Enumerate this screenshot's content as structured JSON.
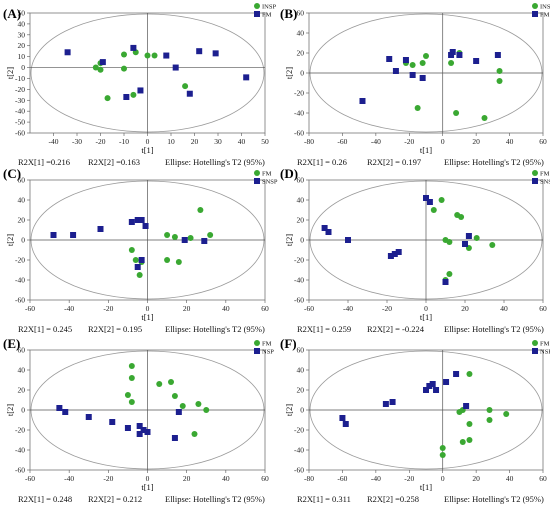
{
  "chart_data": [
    {
      "type": "scatter",
      "panel_label": "(A)",
      "xlabel": "t[1]",
      "ylabel": "t[2]",
      "xlim": [
        -50,
        50
      ],
      "ylim": [
        -60,
        50
      ],
      "xticks": [
        -40,
        -30,
        -20,
        -10,
        0,
        10,
        20,
        30,
        40,
        50
      ],
      "yticks": [
        -60,
        -50,
        -40,
        -30,
        -20,
        -10,
        0,
        10,
        20,
        30,
        40,
        50
      ],
      "stats": [
        "R2X[1] =0.216",
        "R2X[2] =0.163",
        "Ellipse: Hotelling's T2 (95%)"
      ],
      "series": [
        {
          "name": "INSP",
          "marker": "circle",
          "color": "#3aa832",
          "points": [
            [
              -22,
              0
            ],
            [
              -20,
              -2
            ],
            [
              -20,
              4
            ],
            [
              -17,
              -28
            ],
            [
              -10,
              12
            ],
            [
              -10,
              -1
            ],
            [
              -6,
              -25
            ],
            [
              -5,
              14
            ],
            [
              0,
              11
            ],
            [
              3,
              11
            ],
            [
              16,
              -17
            ]
          ]
        },
        {
          "name": "FM",
          "marker": "square",
          "color": "#1c1f8f",
          "points": [
            [
              -34,
              14
            ],
            [
              -19,
              5
            ],
            [
              -9,
              -27
            ],
            [
              -6,
              18
            ],
            [
              -3,
              -21
            ],
            [
              8,
              11
            ],
            [
              12,
              0
            ],
            [
              22,
              15
            ],
            [
              29,
              13
            ],
            [
              42,
              -9
            ],
            [
              18,
              -24
            ]
          ]
        }
      ]
    },
    {
      "type": "scatter",
      "panel_label": "(B)",
      "xlabel": "t[1]",
      "ylabel": "t[2]",
      "xlim": [
        -80,
        60
      ],
      "ylim": [
        -60,
        60
      ],
      "xticks": [
        -80,
        -60,
        -40,
        -20,
        0,
        20,
        40,
        60
      ],
      "yticks": [
        -60,
        -40,
        -20,
        0,
        20,
        40,
        60
      ],
      "stats": [
        "R2X[1] = 0.26",
        "R2X[2] = 0.197",
        "Ellipse: Hotelling's T2 (95%)"
      ],
      "series": [
        {
          "name": "INSP",
          "marker": "circle",
          "color": "#3aa832",
          "points": [
            [
              -22,
              10
            ],
            [
              -18,
              8
            ],
            [
              -12,
              10
            ],
            [
              -10,
              17
            ],
            [
              -15,
              -35
            ],
            [
              8,
              -40
            ],
            [
              25,
              -45
            ],
            [
              34,
              2
            ],
            [
              34,
              -8
            ],
            [
              10,
              20
            ],
            [
              5,
              10
            ]
          ]
        },
        {
          "name": "FM",
          "marker": "square",
          "color": "#1c1f8f",
          "points": [
            [
              -48,
              -28
            ],
            [
              -32,
              14
            ],
            [
              -28,
              2
            ],
            [
              -22,
              13
            ],
            [
              -18,
              -2
            ],
            [
              -12,
              -5
            ],
            [
              6,
              21
            ],
            [
              10,
              18
            ],
            [
              20,
              12
            ],
            [
              33,
              18
            ],
            [
              5,
              18
            ]
          ]
        }
      ]
    },
    {
      "type": "scatter",
      "panel_label": "(C)",
      "xlabel": "t[1]",
      "ylabel": "t[2]",
      "xlim": [
        -60,
        60
      ],
      "ylim": [
        -60,
        60
      ],
      "xticks": [
        -60,
        -40,
        -20,
        0,
        20,
        40,
        60
      ],
      "yticks": [
        -60,
        -40,
        -20,
        0,
        20,
        40,
        60
      ],
      "stats": [
        "R2X[1] = 0.245",
        "R2X[2] = 0.195",
        "Ellipse: Hotelling's T2 (95%)"
      ],
      "series": [
        {
          "name": "FM",
          "marker": "circle",
          "color": "#3aa832",
          "points": [
            [
              -8,
              -10
            ],
            [
              -6,
              -20
            ],
            [
              -4,
              -35
            ],
            [
              -3,
              -22
            ],
            [
              10,
              5
            ],
            [
              14,
              3
            ],
            [
              16,
              -22
            ],
            [
              10,
              -20
            ],
            [
              22,
              2
            ],
            [
              27,
              30
            ],
            [
              32,
              5
            ]
          ]
        },
        {
          "name": "SNSP",
          "marker": "square",
          "color": "#1c1f8f",
          "points": [
            [
              -48,
              5
            ],
            [
              -38,
              5
            ],
            [
              -24,
              11
            ],
            [
              -8,
              18
            ],
            [
              -5,
              20
            ],
            [
              -3,
              20
            ],
            [
              -1,
              14
            ],
            [
              -5,
              -27
            ],
            [
              19,
              0
            ],
            [
              29,
              -1
            ],
            [
              -3,
              -20
            ]
          ]
        }
      ]
    },
    {
      "type": "scatter",
      "panel_label": "(D)",
      "xlabel": "t[1]",
      "ylabel": "t[2]",
      "xlim": [
        -60,
        60
      ],
      "ylim": [
        -60,
        60
      ],
      "xticks": [
        -60,
        -40,
        -20,
        0,
        20,
        40,
        60
      ],
      "yticks": [
        -60,
        -40,
        -20,
        0,
        20,
        40,
        60
      ],
      "stats": [
        "R2X[1] = 0.259",
        "R2X[2] = -0.224",
        "Ellipse: Hotelling's T2 (95%)"
      ],
      "series": [
        {
          "name": "FM",
          "marker": "circle",
          "color": "#3aa832",
          "points": [
            [
              4,
              30
            ],
            [
              8,
              40
            ],
            [
              10,
              0
            ],
            [
              12,
              -2
            ],
            [
              16,
              25
            ],
            [
              18,
              23
            ],
            [
              22,
              -8
            ],
            [
              26,
              2
            ],
            [
              34,
              -5
            ],
            [
              12,
              -34
            ],
            [
              10,
              -40
            ]
          ]
        },
        {
          "name": "SNSP",
          "marker": "square",
          "color": "#1c1f8f",
          "points": [
            [
              -52,
              12
            ],
            [
              -50,
              8
            ],
            [
              -40,
              0
            ],
            [
              -16,
              -14
            ],
            [
              -14,
              -12
            ],
            [
              0,
              42
            ],
            [
              10,
              -42
            ],
            [
              22,
              4
            ],
            [
              2,
              38
            ],
            [
              -18,
              -16
            ],
            [
              20,
              -4
            ]
          ]
        }
      ]
    },
    {
      "type": "scatter",
      "panel_label": "(E)",
      "xlabel": "t[1]",
      "ylabel": "t[2]",
      "xlim": [
        -60,
        60
      ],
      "ylim": [
        -60,
        60
      ],
      "xticks": [
        -60,
        -40,
        -20,
        0,
        20,
        40,
        60
      ],
      "yticks": [
        -60,
        -40,
        -20,
        0,
        20,
        40,
        60
      ],
      "stats": [
        "R2X[1] = 0.248",
        "R2X[2] = 0.212",
        "Ellipse: Hotelling's T2 (95%)"
      ],
      "series": [
        {
          "name": "FM",
          "marker": "circle",
          "color": "#3aa832",
          "points": [
            [
              -8,
              44
            ],
            [
              -8,
              32
            ],
            [
              -10,
              15
            ],
            [
              -8,
              8
            ],
            [
              6,
              26
            ],
            [
              12,
              28
            ],
            [
              14,
              14
            ],
            [
              18,
              4
            ],
            [
              26,
              6
            ],
            [
              30,
              0
            ],
            [
              24,
              -24
            ]
          ]
        },
        {
          "name": "NSP",
          "marker": "square",
          "color": "#1c1f8f",
          "points": [
            [
              -45,
              2
            ],
            [
              -42,
              -2
            ],
            [
              -30,
              -7
            ],
            [
              -18,
              -12
            ],
            [
              -10,
              -18
            ],
            [
              -4,
              -16
            ],
            [
              -4,
              -24
            ],
            [
              -2,
              -20
            ],
            [
              14,
              -28
            ],
            [
              16,
              -2
            ],
            [
              0,
              -22
            ]
          ]
        }
      ]
    },
    {
      "type": "scatter",
      "panel_label": "(F)",
      "xlabel": "t[1]",
      "ylabel": "t[2]",
      "xlim": [
        -80,
        60
      ],
      "ylim": [
        -60,
        60
      ],
      "xticks": [
        -80,
        -60,
        -40,
        -20,
        0,
        20,
        40,
        60
      ],
      "yticks": [
        -60,
        -40,
        -20,
        0,
        20,
        40,
        60
      ],
      "stats": [
        "R2X[1] = 0.311",
        "R2X[2] =0.258",
        "Ellipse: Hotelling's T2 (95%)"
      ],
      "series": [
        {
          "name": "FM",
          "marker": "circle",
          "color": "#3aa832",
          "points": [
            [
              0,
              -38
            ],
            [
              0,
              -45
            ],
            [
              10,
              -2
            ],
            [
              12,
              0
            ],
            [
              12,
              -32
            ],
            [
              16,
              -30
            ],
            [
              16,
              36
            ],
            [
              28,
              0
            ],
            [
              28,
              -10
            ],
            [
              38,
              -4
            ],
            [
              16,
              -14
            ]
          ]
        },
        {
          "name": "NSP",
          "marker": "square",
          "color": "#1c1f8f",
          "points": [
            [
              -60,
              -8
            ],
            [
              -58,
              -14
            ],
            [
              -34,
              6
            ],
            [
              -30,
              8
            ],
            [
              -10,
              20
            ],
            [
              -8,
              24
            ],
            [
              -6,
              26
            ],
            [
              2,
              28
            ],
            [
              8,
              36
            ],
            [
              14,
              4
            ],
            [
              -4,
              20
            ]
          ]
        }
      ]
    }
  ]
}
